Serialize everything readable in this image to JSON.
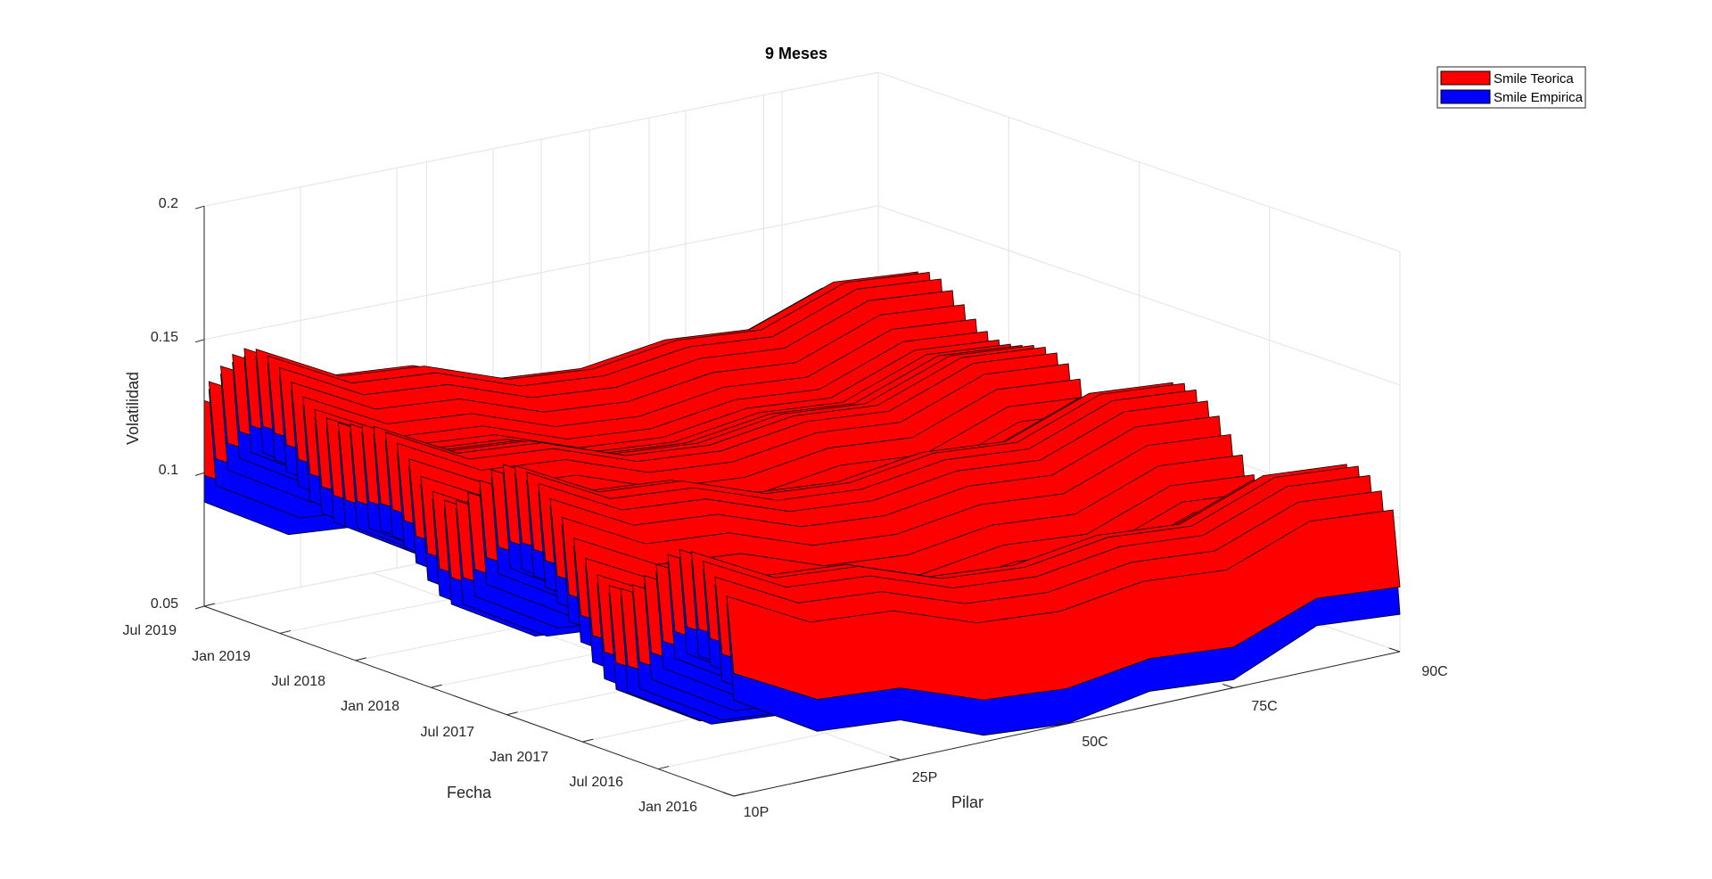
{
  "chart_data": {
    "type": "surface3d",
    "title": "9 Meses",
    "xlabel": "Pilar",
    "ylabel": "Fecha",
    "zlabel": "Volatilidad",
    "x_ticks": [
      "10P",
      "25P",
      "50C",
      "75C",
      "90C"
    ],
    "y_ticks": [
      "Jan 2016",
      "Jul 2016",
      "Jan 2017",
      "Jul 2017",
      "Jan 2018",
      "Jul 2018",
      "Jan 2019",
      "Jul 2019"
    ],
    "z_ticks": [
      "0.05",
      "0.1",
      "0.15",
      "0.2"
    ],
    "zlim": [
      0.05,
      0.2
    ],
    "grid": true,
    "legend_position": "top-right",
    "series": [
      {
        "name": "Smile Teorica",
        "color": "#ff0000"
      },
      {
        "name": "Smile Empirica",
        "color": "#0000ff"
      }
    ]
  }
}
